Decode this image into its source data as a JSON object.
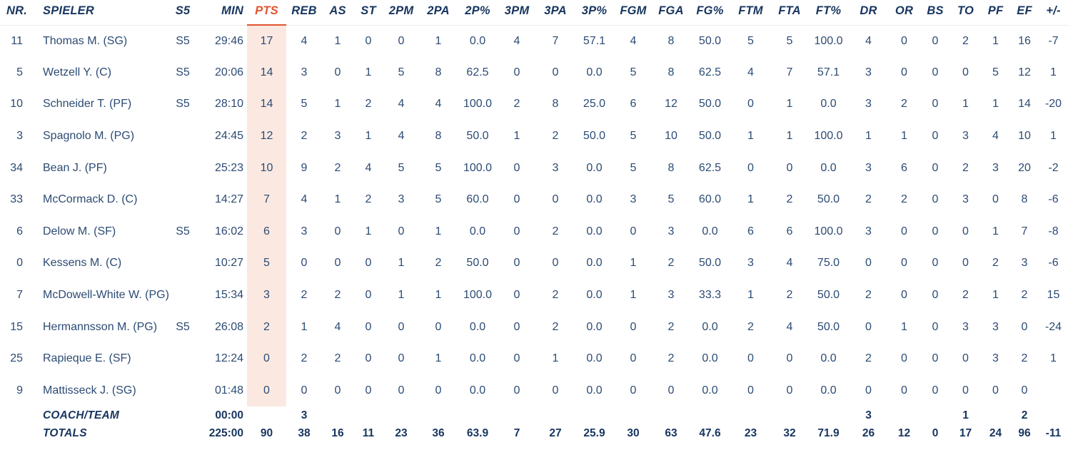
{
  "table": {
    "columns": [
      {
        "key": "nr",
        "label": "NR."
      },
      {
        "key": "spieler",
        "label": "SPIELER"
      },
      {
        "key": "s5",
        "label": "S5"
      },
      {
        "key": "min",
        "label": "MIN"
      },
      {
        "key": "pts",
        "label": "PTS"
      },
      {
        "key": "reb",
        "label": "REB"
      },
      {
        "key": "as",
        "label": "AS"
      },
      {
        "key": "st",
        "label": "ST"
      },
      {
        "key": "2pm",
        "label": "2PM"
      },
      {
        "key": "2pa",
        "label": "2PA"
      },
      {
        "key": "2ppct",
        "label": "2P%"
      },
      {
        "key": "3pm",
        "label": "3PM"
      },
      {
        "key": "3pa",
        "label": "3PA"
      },
      {
        "key": "3ppct",
        "label": "3P%"
      },
      {
        "key": "fgm",
        "label": "FGM"
      },
      {
        "key": "fga",
        "label": "FGA"
      },
      {
        "key": "fgpct",
        "label": "FG%"
      },
      {
        "key": "ftm",
        "label": "FTM"
      },
      {
        "key": "fta",
        "label": "FTA"
      },
      {
        "key": "ftpct",
        "label": "FT%"
      },
      {
        "key": "dr",
        "label": "DR"
      },
      {
        "key": "or",
        "label": "OR"
      },
      {
        "key": "bs",
        "label": "BS"
      },
      {
        "key": "to",
        "label": "TO"
      },
      {
        "key": "pf",
        "label": "PF"
      },
      {
        "key": "ef",
        "label": "EF"
      },
      {
        "key": "pm",
        "label": "+/-"
      }
    ],
    "players": [
      {
        "nr": "11",
        "spieler": "Thomas M. (SG)",
        "s5": "S5",
        "min": "29:46",
        "pts": "17",
        "reb": "4",
        "as": "1",
        "st": "0",
        "2pm": "0",
        "2pa": "1",
        "2ppct": "0.0",
        "3pm": "4",
        "3pa": "7",
        "3ppct": "57.1",
        "fgm": "4",
        "fga": "8",
        "fgpct": "50.0",
        "ftm": "5",
        "fta": "5",
        "ftpct": "100.0",
        "dr": "4",
        "or": "0",
        "bs": "0",
        "to": "2",
        "pf": "1",
        "ef": "16",
        "pm": "-7"
      },
      {
        "nr": "5",
        "spieler": "Wetzell Y. (C)",
        "s5": "S5",
        "min": "20:06",
        "pts": "14",
        "reb": "3",
        "as": "0",
        "st": "1",
        "2pm": "5",
        "2pa": "8",
        "2ppct": "62.5",
        "3pm": "0",
        "3pa": "0",
        "3ppct": "0.0",
        "fgm": "5",
        "fga": "8",
        "fgpct": "62.5",
        "ftm": "4",
        "fta": "7",
        "ftpct": "57.1",
        "dr": "3",
        "or": "0",
        "bs": "0",
        "to": "0",
        "pf": "5",
        "ef": "12",
        "pm": "1"
      },
      {
        "nr": "10",
        "spieler": "Schneider T. (PF)",
        "s5": "S5",
        "min": "28:10",
        "pts": "14",
        "reb": "5",
        "as": "1",
        "st": "2",
        "2pm": "4",
        "2pa": "4",
        "2ppct": "100.0",
        "3pm": "2",
        "3pa": "8",
        "3ppct": "25.0",
        "fgm": "6",
        "fga": "12",
        "fgpct": "50.0",
        "ftm": "0",
        "fta": "1",
        "ftpct": "0.0",
        "dr": "3",
        "or": "2",
        "bs": "0",
        "to": "1",
        "pf": "1",
        "ef": "14",
        "pm": "-20"
      },
      {
        "nr": "3",
        "spieler": "Spagnolo M. (PG)",
        "s5": "",
        "min": "24:45",
        "pts": "12",
        "reb": "2",
        "as": "3",
        "st": "1",
        "2pm": "4",
        "2pa": "8",
        "2ppct": "50.0",
        "3pm": "1",
        "3pa": "2",
        "3ppct": "50.0",
        "fgm": "5",
        "fga": "10",
        "fgpct": "50.0",
        "ftm": "1",
        "fta": "1",
        "ftpct": "100.0",
        "dr": "1",
        "or": "1",
        "bs": "0",
        "to": "3",
        "pf": "4",
        "ef": "10",
        "pm": "1"
      },
      {
        "nr": "34",
        "spieler": "Bean J. (PF)",
        "s5": "",
        "min": "25:23",
        "pts": "10",
        "reb": "9",
        "as": "2",
        "st": "4",
        "2pm": "5",
        "2pa": "5",
        "2ppct": "100.0",
        "3pm": "0",
        "3pa": "3",
        "3ppct": "0.0",
        "fgm": "5",
        "fga": "8",
        "fgpct": "62.5",
        "ftm": "0",
        "fta": "0",
        "ftpct": "0.0",
        "dr": "3",
        "or": "6",
        "bs": "0",
        "to": "2",
        "pf": "3",
        "ef": "20",
        "pm": "-2"
      },
      {
        "nr": "33",
        "spieler": "McCormack D. (C)",
        "s5": "",
        "min": "14:27",
        "pts": "7",
        "reb": "4",
        "as": "1",
        "st": "2",
        "2pm": "3",
        "2pa": "5",
        "2ppct": "60.0",
        "3pm": "0",
        "3pa": "0",
        "3ppct": "0.0",
        "fgm": "3",
        "fga": "5",
        "fgpct": "60.0",
        "ftm": "1",
        "fta": "2",
        "ftpct": "50.0",
        "dr": "2",
        "or": "2",
        "bs": "0",
        "to": "3",
        "pf": "0",
        "ef": "8",
        "pm": "-6"
      },
      {
        "nr": "6",
        "spieler": "Delow M. (SF)",
        "s5": "S5",
        "min": "16:02",
        "pts": "6",
        "reb": "3",
        "as": "0",
        "st": "1",
        "2pm": "0",
        "2pa": "1",
        "2ppct": "0.0",
        "3pm": "0",
        "3pa": "2",
        "3ppct": "0.0",
        "fgm": "0",
        "fga": "3",
        "fgpct": "0.0",
        "ftm": "6",
        "fta": "6",
        "ftpct": "100.0",
        "dr": "3",
        "or": "0",
        "bs": "0",
        "to": "0",
        "pf": "1",
        "ef": "7",
        "pm": "-8"
      },
      {
        "nr": "0",
        "spieler": "Kessens M. (C)",
        "s5": "",
        "min": "10:27",
        "pts": "5",
        "reb": "0",
        "as": "0",
        "st": "0",
        "2pm": "1",
        "2pa": "2",
        "2ppct": "50.0",
        "3pm": "0",
        "3pa": "0",
        "3ppct": "0.0",
        "fgm": "1",
        "fga": "2",
        "fgpct": "50.0",
        "ftm": "3",
        "fta": "4",
        "ftpct": "75.0",
        "dr": "0",
        "or": "0",
        "bs": "0",
        "to": "0",
        "pf": "2",
        "ef": "3",
        "pm": "-6"
      },
      {
        "nr": "7",
        "spieler": "McDowell-White W. (PG)",
        "s5": "",
        "min": "15:34",
        "pts": "3",
        "reb": "2",
        "as": "2",
        "st": "0",
        "2pm": "1",
        "2pa": "1",
        "2ppct": "100.0",
        "3pm": "0",
        "3pa": "2",
        "3ppct": "0.0",
        "fgm": "1",
        "fga": "3",
        "fgpct": "33.3",
        "ftm": "1",
        "fta": "2",
        "ftpct": "50.0",
        "dr": "2",
        "or": "0",
        "bs": "0",
        "to": "2",
        "pf": "1",
        "ef": "2",
        "pm": "15"
      },
      {
        "nr": "15",
        "spieler": "Hermannsson M. (PG)",
        "s5": "S5",
        "min": "26:08",
        "pts": "2",
        "reb": "1",
        "as": "4",
        "st": "0",
        "2pm": "0",
        "2pa": "0",
        "2ppct": "0.0",
        "3pm": "0",
        "3pa": "2",
        "3ppct": "0.0",
        "fgm": "0",
        "fga": "2",
        "fgpct": "0.0",
        "ftm": "2",
        "fta": "4",
        "ftpct": "50.0",
        "dr": "0",
        "or": "1",
        "bs": "0",
        "to": "3",
        "pf": "3",
        "ef": "0",
        "pm": "-24"
      },
      {
        "nr": "25",
        "spieler": "Rapieque E. (SF)",
        "s5": "",
        "min": "12:24",
        "pts": "0",
        "reb": "2",
        "as": "2",
        "st": "0",
        "2pm": "0",
        "2pa": "1",
        "2ppct": "0.0",
        "3pm": "0",
        "3pa": "1",
        "3ppct": "0.0",
        "fgm": "0",
        "fga": "2",
        "fgpct": "0.0",
        "ftm": "0",
        "fta": "0",
        "ftpct": "0.0",
        "dr": "2",
        "or": "0",
        "bs": "0",
        "to": "0",
        "pf": "3",
        "ef": "2",
        "pm": "1"
      },
      {
        "nr": "9",
        "spieler": "Mattisseck J. (SG)",
        "s5": "",
        "min": "01:48",
        "pts": "0",
        "reb": "0",
        "as": "0",
        "st": "0",
        "2pm": "0",
        "2pa": "0",
        "2ppct": "0.0",
        "3pm": "0",
        "3pa": "0",
        "3ppct": "0.0",
        "fgm": "0",
        "fga": "0",
        "fgpct": "0.0",
        "ftm": "0",
        "fta": "0",
        "ftpct": "0.0",
        "dr": "0",
        "or": "0",
        "bs": "0",
        "to": "0",
        "pf": "0",
        "ef": "0",
        "pm": ""
      }
    ],
    "footer_rows": [
      {
        "nr": "",
        "spieler": "COACH/TEAM",
        "s5": "",
        "min": "00:00",
        "pts": "",
        "reb": "3",
        "as": "",
        "st": "",
        "2pm": "",
        "2pa": "",
        "2ppct": "",
        "3pm": "",
        "3pa": "",
        "3ppct": "",
        "fgm": "",
        "fga": "",
        "fgpct": "",
        "ftm": "",
        "fta": "",
        "ftpct": "",
        "dr": "3",
        "or": "",
        "bs": "",
        "to": "1",
        "pf": "",
        "ef": "2",
        "pm": ""
      },
      {
        "nr": "",
        "spieler": "TOTALS",
        "s5": "",
        "min": "225:00",
        "pts": "90",
        "reb": "38",
        "as": "16",
        "st": "11",
        "2pm": "23",
        "2pa": "36",
        "2ppct": "63.9",
        "3pm": "7",
        "3pa": "27",
        "3ppct": "25.9",
        "fgm": "30",
        "fga": "63",
        "fgpct": "47.6",
        "ftm": "23",
        "fta": "32",
        "ftpct": "71.9",
        "dr": "26",
        "or": "12",
        "bs": "0",
        "to": "17",
        "pf": "24",
        "ef": "96",
        "pm": "-11"
      }
    ]
  },
  "colors": {
    "header_text": "#17355f",
    "body_text": "#2c4b74",
    "accent_orange": "#e1532f",
    "pts_column_bg": "#fbe9e1",
    "header_border": "#ececec"
  }
}
